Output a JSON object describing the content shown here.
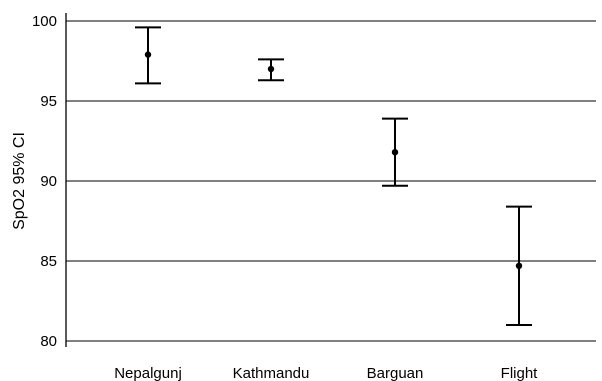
{
  "chart_data": {
    "type": "errorbar",
    "title": "",
    "xlabel": "",
    "ylabel": "SpO2 95% CI",
    "ylim": [
      80,
      100
    ],
    "yticks": [
      80,
      85,
      90,
      95,
      100
    ],
    "grid": "horizontal",
    "categories": [
      "Nepalgunj",
      "Kathmandu",
      "Barguan",
      "Flight"
    ],
    "mean": [
      97.9,
      97.0,
      91.8,
      84.7
    ],
    "lower": [
      96.1,
      96.3,
      89.7,
      81.0
    ],
    "upper": [
      99.6,
      97.6,
      93.9,
      88.4
    ]
  }
}
